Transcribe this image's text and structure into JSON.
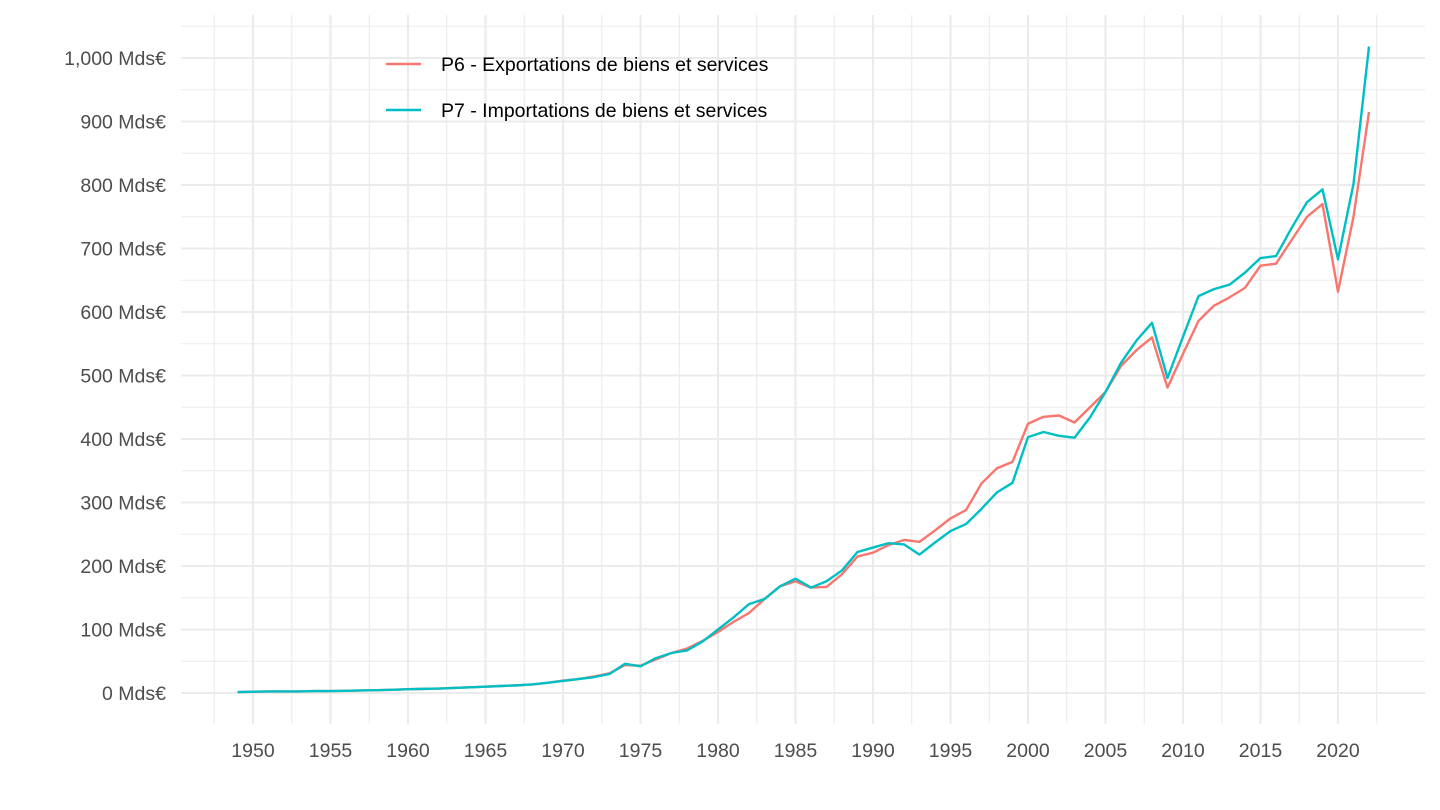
{
  "chart_data": {
    "type": "line",
    "title": "",
    "xlabel": "",
    "ylabel": "",
    "xlim": [
      1946.5,
      2024.5
    ],
    "ylim": [
      -48,
      1050
    ],
    "grid": true,
    "legend_position": "top-left-inside",
    "x_ticks": [
      1950,
      1955,
      1960,
      1965,
      1970,
      1975,
      1980,
      1985,
      1990,
      1995,
      2000,
      2005,
      2010,
      2015,
      2020
    ],
    "x_tick_labels": [
      "1950",
      "1955",
      "1960",
      "1965",
      "1970",
      "1975",
      "1980",
      "1985",
      "1990",
      "1995",
      "2000",
      "2005",
      "2010",
      "2015",
      "2020"
    ],
    "y_ticks": [
      0,
      100,
      200,
      300,
      400,
      500,
      600,
      700,
      800,
      900,
      1000
    ],
    "y_tick_labels": [
      "0 Mds€",
      "100 Mds€",
      "200 Mds€",
      "300 Mds€",
      "400 Mds€",
      "500 Mds€",
      "600 Mds€",
      "700 Mds€",
      "800 Mds€",
      "900 Mds€",
      "1,000 Mds€"
    ],
    "x": [
      1949,
      1950,
      1951,
      1952,
      1953,
      1954,
      1955,
      1956,
      1957,
      1958,
      1959,
      1960,
      1961,
      1962,
      1963,
      1964,
      1965,
      1966,
      1967,
      1968,
      1969,
      1970,
      1971,
      1972,
      1973,
      1974,
      1975,
      1976,
      1977,
      1978,
      1979,
      1980,
      1981,
      1982,
      1983,
      1984,
      1985,
      1986,
      1987,
      1988,
      1989,
      1990,
      1991,
      1992,
      1993,
      1994,
      1995,
      1996,
      1997,
      1998,
      1999,
      2000,
      2001,
      2002,
      2003,
      2004,
      2005,
      2006,
      2007,
      2008,
      2009,
      2010,
      2011,
      2012,
      2013,
      2014,
      2015,
      2016,
      2017,
      2018,
      2019,
      2020,
      2021,
      2022
    ],
    "series": [
      {
        "name": "P6 - Exportations de biens et services",
        "color": "#F8766D",
        "values": [
          1.5,
          2,
          2.5,
          2.5,
          2.5,
          3,
          3,
          3.5,
          4,
          4.5,
          5,
          6,
          6.5,
          7,
          8,
          9,
          10,
          11,
          12,
          13.5,
          16,
          19.5,
          22,
          26,
          31,
          44,
          43,
          53,
          63,
          70,
          82,
          96,
          112,
          126,
          148,
          168,
          176,
          166,
          167,
          187,
          215,
          221,
          233,
          241,
          238,
          256,
          275,
          288,
          330,
          354,
          364,
          424,
          435,
          437,
          426,
          450,
          474,
          515,
          540,
          560,
          481,
          534,
          586,
          610,
          623,
          638,
          673,
          676,
          713,
          750,
          770,
          632,
          750,
          915
        ]
      },
      {
        "name": "P7 - Importations de biens et services",
        "color": "#00BFC4",
        "values": [
          1.5,
          2,
          2.5,
          2.5,
          2.5,
          3,
          3,
          3.5,
          4,
          4.5,
          5,
          6,
          6.5,
          7,
          8,
          9,
          10,
          11,
          12,
          13.5,
          16,
          19,
          22,
          25,
          30,
          46,
          42,
          55,
          63,
          67,
          81,
          100,
          119,
          140,
          148,
          168,
          180,
          166,
          176,
          193,
          222,
          229,
          236,
          234,
          218,
          237,
          255,
          266,
          290,
          316,
          331,
          403,
          411,
          405,
          402,
          434,
          474,
          520,
          555,
          583,
          496,
          561,
          625,
          636,
          643,
          662,
          685,
          688,
          732,
          773,
          793,
          683,
          802,
          1018
        ]
      }
    ]
  }
}
